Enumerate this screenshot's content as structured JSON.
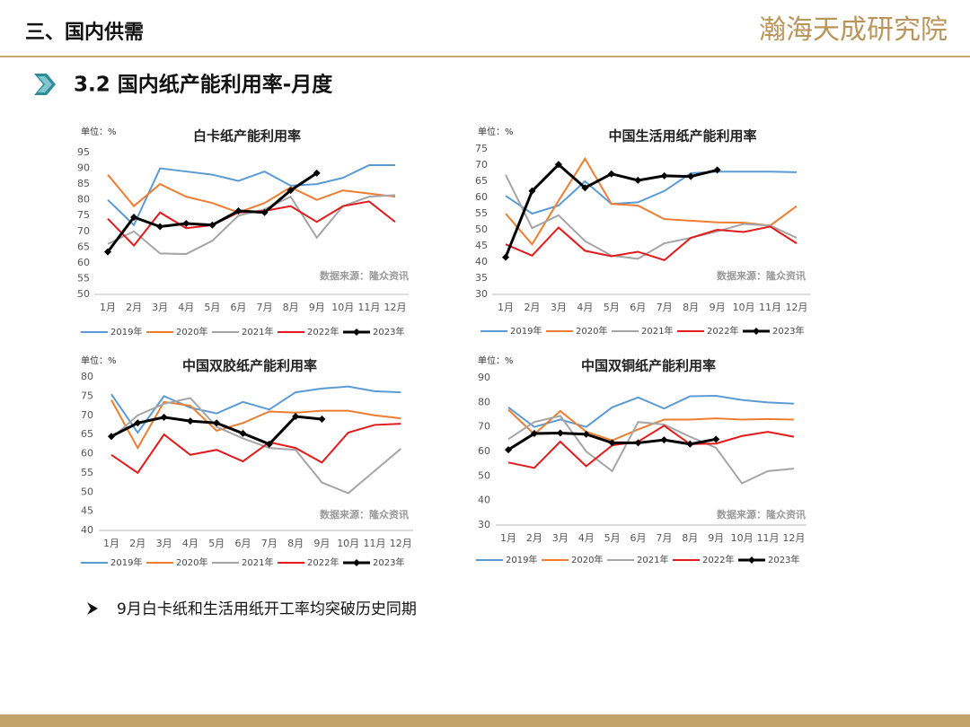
{
  "header": {
    "section": "三、国内供需",
    "logo": "瀚海天成研究院"
  },
  "subtitle": "3.2 国内纸产能利用率-月度",
  "bullet": "9月白卡纸和生活用纸开工率均突破历史同期",
  "chart_data": [
    {
      "type": "line",
      "title": "白卡纸产能利用率",
      "unit": "单位：%",
      "source": "数据来源：隆众资讯",
      "categories": [
        "1月",
        "2月",
        "3月",
        "4月",
        "5月",
        "6月",
        "7月",
        "8月",
        "9月",
        "10月",
        "11月",
        "12月"
      ],
      "ylim": [
        50,
        95
      ],
      "yticks": [
        50,
        55,
        60,
        65,
        70,
        75,
        80,
        85,
        90,
        95
      ],
      "grid": false,
      "legend": "bottom",
      "series": [
        {
          "name": "2019年",
          "color": "#5b9bd5",
          "values": [
            80,
            72,
            90,
            89,
            88,
            86,
            89,
            84.5,
            85,
            87,
            91,
            91
          ]
        },
        {
          "name": "2020年",
          "color": "#ed7d31",
          "values": [
            88,
            78,
            85,
            81,
            79,
            76,
            79,
            84,
            80,
            83,
            82,
            81
          ]
        },
        {
          "name": "2021年",
          "color": "#a5a5a5",
          "values": [
            66,
            70,
            63,
            62.8,
            67,
            75,
            77,
            81,
            68,
            78,
            81,
            81.5
          ]
        },
        {
          "name": "2022年",
          "color": "#e31a1c",
          "values": [
            74,
            65.5,
            76,
            71,
            72,
            76,
            76.5,
            78,
            73,
            78,
            79.5,
            73
          ]
        },
        {
          "name": "2023年",
          "color": "#000000",
          "values": [
            63.5,
            74.5,
            71.5,
            72.5,
            72,
            76.5,
            76,
            83,
            88.5,
            null,
            null,
            null
          ]
        }
      ]
    },
    {
      "type": "line",
      "title": "中国生活用纸产能利用率",
      "unit": "单位：%",
      "source": "数据来源：隆众资讯",
      "categories": [
        "1月",
        "2月",
        "3月",
        "4月",
        "5月",
        "6月",
        "7月",
        "8月",
        "9月",
        "10月",
        "11月",
        "12月"
      ],
      "ylim": [
        30,
        75
      ],
      "yticks": [
        30,
        35,
        40,
        45,
        50,
        55,
        60,
        65,
        70,
        75
      ],
      "grid": false,
      "legend": "bottom",
      "series": [
        {
          "name": "2019年",
          "color": "#5b9bd5",
          "values": [
            60.5,
            55,
            57.5,
            65,
            58,
            58.5,
            62,
            67.5,
            68,
            68,
            68,
            67.8
          ]
        },
        {
          "name": "2020年",
          "color": "#ed7d31",
          "values": [
            55,
            45.5,
            59,
            72,
            58,
            57.5,
            53.3,
            52.8,
            52.3,
            52.2,
            51.3,
            57.3
          ]
        },
        {
          "name": "2021年",
          "color": "#a5a5a5",
          "values": [
            67,
            50.5,
            54.5,
            46.5,
            42,
            41,
            45.8,
            47.5,
            49.5,
            51.8,
            51.3,
            47.5
          ]
        },
        {
          "name": "2022年",
          "color": "#e31a1c",
          "values": [
            45.5,
            42,
            50.7,
            43.5,
            41.8,
            43.2,
            40.6,
            47.5,
            50,
            49.3,
            51,
            45.8
          ]
        },
        {
          "name": "2023年",
          "color": "#000000",
          "values": [
            41.5,
            62,
            70.2,
            63,
            67.3,
            65.3,
            66.7,
            66.5,
            68.5,
            null,
            null,
            null
          ]
        }
      ]
    },
    {
      "type": "line",
      "title": "中国双胶纸产能利用率",
      "unit": "单位：%",
      "source": "数据来源：隆众资讯",
      "categories": [
        "1月",
        "2月",
        "3月",
        "4月",
        "5月",
        "6月",
        "7月",
        "8月",
        "9月",
        "10月",
        "11月",
        "12月"
      ],
      "ylim": [
        40,
        80
      ],
      "yticks": [
        40,
        45,
        50,
        55,
        60,
        65,
        70,
        75,
        80
      ],
      "grid": false,
      "legend": "bottom",
      "series": [
        {
          "name": "2019年",
          "color": "#5b9bd5",
          "values": [
            75.5,
            65.5,
            75,
            72,
            70.5,
            73.5,
            71.5,
            76,
            77,
            77.5,
            76.3,
            76
          ]
        },
        {
          "name": "2020年",
          "color": "#ed7d31",
          "values": [
            74,
            61.5,
            73.5,
            72.5,
            66,
            68,
            71,
            70.7,
            71.2,
            71.2,
            70,
            69.2
          ]
        },
        {
          "name": "2021年",
          "color": "#a5a5a5",
          "values": [
            64,
            70,
            73,
            74.5,
            67,
            64,
            61.5,
            61,
            52.5,
            49.7,
            55.5,
            61.3
          ]
        },
        {
          "name": "2022年",
          "color": "#e31a1c",
          "values": [
            59.7,
            55,
            65,
            59.7,
            61,
            58,
            63,
            61.5,
            57.7,
            65.5,
            67.5,
            67.8
          ]
        },
        {
          "name": "2023年",
          "color": "#000000",
          "values": [
            64.5,
            68,
            69.5,
            68.5,
            68,
            65.3,
            62.5,
            69.7,
            69,
            null,
            null,
            null
          ]
        }
      ]
    },
    {
      "type": "line",
      "title": "中国双铜纸产能利用率",
      "unit": "单位：%",
      "source": "数据来源：隆众资讯",
      "categories": [
        "1月",
        "2月",
        "3月",
        "4月",
        "5月",
        "6月",
        "7月",
        "8月",
        "9月",
        "10月",
        "11月",
        "12月"
      ],
      "ylim": [
        30,
        90
      ],
      "yticks": [
        30,
        40,
        50,
        60,
        70,
        80,
        90
      ],
      "grid": false,
      "legend": "bottom",
      "series": [
        {
          "name": "2019年",
          "color": "#5b9bd5",
          "values": [
            78,
            70,
            73,
            70,
            78,
            82,
            77.5,
            82.5,
            82.7,
            81,
            80,
            79.5
          ]
        },
        {
          "name": "2020年",
          "color": "#ed7d31",
          "values": [
            77,
            67,
            76.5,
            68,
            64.5,
            69,
            73,
            73,
            73.5,
            73,
            73.2,
            73
          ]
        },
        {
          "name": "2021年",
          "color": "#a5a5a5",
          "values": [
            65,
            72,
            74.5,
            60,
            52,
            72,
            71,
            66,
            61.5,
            47,
            52,
            53
          ]
        },
        {
          "name": "2022年",
          "color": "#e31a1c",
          "values": [
            55.5,
            53.3,
            64,
            54,
            62.5,
            64,
            70.5,
            63,
            63.2,
            66.3,
            68,
            66
          ]
        },
        {
          "name": "2023年",
          "color": "#000000",
          "values": [
            60.7,
            67.3,
            67.5,
            67,
            63.5,
            63.5,
            64.7,
            63,
            65,
            null,
            null,
            null
          ]
        }
      ]
    }
  ]
}
